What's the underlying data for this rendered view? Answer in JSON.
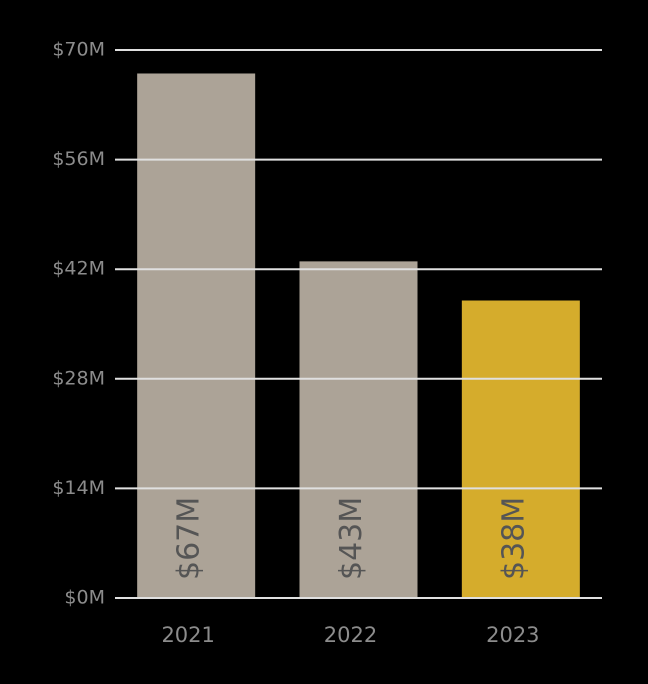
{
  "chart_data": {
    "type": "bar",
    "categories": [
      "2021",
      "2022",
      "2023"
    ],
    "values": [
      67,
      43,
      38
    ],
    "value_labels": [
      "$67M",
      "$43M",
      "$38M"
    ],
    "colors": [
      "#aca397",
      "#aca397",
      "#d5ac2c"
    ],
    "ylim": [
      0,
      70
    ],
    "yticks": [
      {
        "value": 0,
        "label": "$0M"
      },
      {
        "value": 14,
        "label": "$14M"
      },
      {
        "value": 28,
        "label": "$28M"
      },
      {
        "value": 42,
        "label": "$42M"
      },
      {
        "value": 56,
        "label": "$56M"
      },
      {
        "value": 70,
        "label": "$70M"
      }
    ],
    "grid": true
  }
}
